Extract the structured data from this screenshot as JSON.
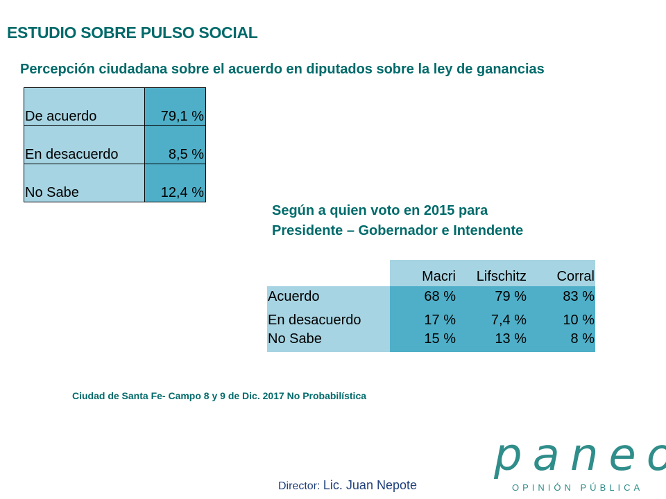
{
  "header": {
    "title": "ESTUDIO SOBRE PULSO SOCIAL",
    "subtitle": "Percepción ciudadana sobre el acuerdo en diputados sobre la ley de ganancias"
  },
  "table1": {
    "rows": [
      {
        "label": "De acuerdo",
        "value": "79,1 %"
      },
      {
        "label": "En desacuerdo",
        "value": "8,5 %"
      },
      {
        "label": "No Sabe",
        "value": "12,4 %"
      }
    ]
  },
  "section": {
    "line1": "Según a quien voto en 2015 para",
    "line2": "Presidente – Gobernador e Intendente"
  },
  "table2": {
    "headers": [
      "Macri",
      "Lifschitz",
      "Corral"
    ],
    "rows": [
      {
        "label": "Acuerdo",
        "values": [
          "68 %",
          "79 %",
          "83 %"
        ]
      },
      {
        "label": "En desacuerdo",
        "values": [
          "17 %",
          "7,4 %",
          "10 %"
        ]
      },
      {
        "label": "No Sabe",
        "values": [
          "15 %",
          "13 %",
          "8 %"
        ]
      }
    ]
  },
  "footnote": "Ciudad de Santa Fe- Campo 8 y 9 de Dic. 2017 No Probabilística",
  "director": {
    "label": "Director:",
    "name": "Lic. Juan Nepote"
  },
  "logo": {
    "word": "paneo",
    "tagline": "OPINIÓN PÚBLICA"
  },
  "colors": {
    "title": "#006a6a",
    "light_cell": "#a6d4e2",
    "dark_cell": "#4fafc8",
    "logo": "#2f8d8a"
  }
}
